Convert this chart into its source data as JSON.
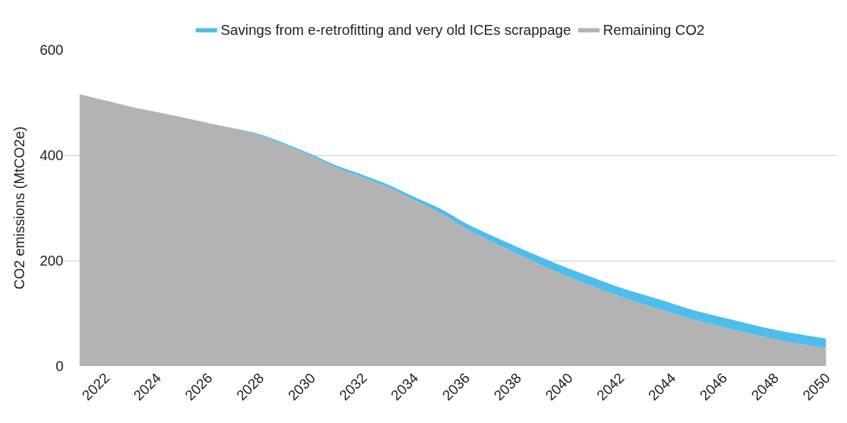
{
  "chart_data": {
    "type": "area",
    "stacked": true,
    "ylabel": "CO2 emissions (MtCO2e)",
    "x": [
      2021,
      2022,
      2023,
      2024,
      2025,
      2026,
      2027,
      2028,
      2029,
      2030,
      2031,
      2032,
      2033,
      2034,
      2035,
      2036,
      2037,
      2038,
      2039,
      2040,
      2041,
      2042,
      2043,
      2044,
      2045,
      2046,
      2047,
      2048,
      2049,
      2050
    ],
    "series": [
      {
        "name": "Remaining CO2",
        "color": "#b3b3b3",
        "values": [
          516,
          504,
          492,
          482,
          472,
          461,
          450,
          438,
          419,
          399,
          376,
          358,
          339,
          315,
          291,
          261,
          236,
          213,
          190,
          169,
          150,
          132,
          116,
          101,
          86,
          74,
          62,
          51,
          42,
          34
        ]
      },
      {
        "name": "Savings from e-retrofitting and very old ICEs scrappage",
        "color": "#4dbdeb",
        "values": [
          0,
          0,
          0,
          0,
          0,
          0,
          1,
          2,
          3,
          3,
          4,
          5,
          5,
          6,
          8,
          10,
          12,
          13,
          15,
          16,
          17,
          17,
          18,
          18,
          18,
          18,
          18,
          18,
          18,
          18
        ]
      }
    ],
    "xlim": [
      2020.4,
      2050.4
    ],
    "xticks": [
      2022,
      2024,
      2026,
      2028,
      2030,
      2032,
      2034,
      2036,
      2038,
      2040,
      2042,
      2044,
      2046,
      2048,
      2050
    ],
    "ylim": [
      0,
      600
    ],
    "yticks": [
      0,
      200,
      400,
      600
    ],
    "grid": "y",
    "legend": "top"
  }
}
